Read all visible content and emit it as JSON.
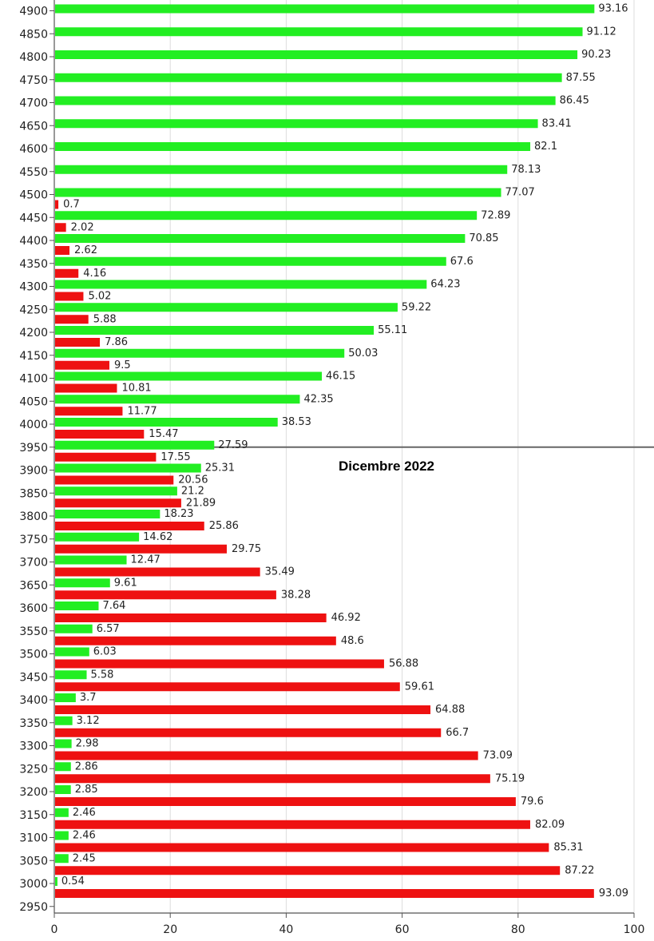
{
  "chart_data": {
    "type": "bar",
    "orientation": "horizontal",
    "title": "",
    "xlabel": "",
    "ylabel": "",
    "xlim": [
      0,
      100
    ],
    "x_ticks": [
      0,
      20,
      40,
      60,
      80,
      100
    ],
    "y_ticks": [
      4900,
      4850,
      4800,
      4750,
      4700,
      4650,
      4600,
      4550,
      4500,
      4450,
      4400,
      4350,
      4300,
      4250,
      4200,
      4150,
      4100,
      4050,
      4000,
      3950,
      3900,
      3850,
      3800,
      3750,
      3700,
      3650,
      3600,
      3550,
      3500,
      3450,
      3400,
      3350,
      3300,
      3250,
      3200,
      3150,
      3100,
      3050,
      3000,
      2950
    ],
    "grid": "vertical",
    "categories": [
      4900,
      4850,
      4800,
      4750,
      4700,
      4650,
      4600,
      4550,
      4500,
      4450,
      4400,
      4350,
      4300,
      4250,
      4200,
      4150,
      4100,
      4050,
      4000,
      3950,
      3900,
      3850,
      3800,
      3750,
      3700,
      3650,
      3600,
      3550,
      3500,
      3450,
      3400,
      3350,
      3300,
      3250,
      3200,
      3150,
      3100,
      3050,
      3000
    ],
    "series": [
      {
        "color": "#22ee22",
        "labels": [
          "93.16",
          "91.12",
          "90.23",
          "87.55",
          "86.45",
          "83.41",
          "82.1",
          "78.13",
          "77.07",
          "72.89",
          "70.85",
          "67.6",
          "64.23",
          "59.22",
          "55.11",
          "50.03",
          "46.15",
          "42.35",
          "38.53",
          "27.59",
          "25.31",
          "21.2",
          "18.23",
          "14.62",
          "12.47",
          "9.61",
          "7.64",
          "6.57",
          "6.03",
          "5.58",
          "3.7",
          "3.12",
          "2.98",
          "2.86",
          "2.85",
          "2.46",
          "2.46",
          "2.45",
          "0.54"
        ],
        "values": [
          93.16,
          91.12,
          90.23,
          87.55,
          86.45,
          83.41,
          82.1,
          78.13,
          77.07,
          72.89,
          70.85,
          67.6,
          64.23,
          59.22,
          55.11,
          50.03,
          46.15,
          42.35,
          38.53,
          27.59,
          25.31,
          21.2,
          18.23,
          14.62,
          12.47,
          9.61,
          7.64,
          6.57,
          6.03,
          5.58,
          3.7,
          3.12,
          2.98,
          2.86,
          2.85,
          2.46,
          2.46,
          2.45,
          0.54
        ]
      },
      {
        "color": "#ee1111",
        "labels": [
          null,
          null,
          null,
          null,
          null,
          null,
          null,
          null,
          "0.7",
          "2.02",
          "2.62",
          "4.16",
          "5.02",
          "5.88",
          "7.86",
          "9.5",
          "10.81",
          "11.77",
          "15.47",
          "17.55",
          "20.56",
          "21.89",
          "25.86",
          "29.75",
          "35.49",
          "38.28",
          "46.92",
          "48.6",
          "56.88",
          "59.61",
          "64.88",
          "66.7",
          "73.09",
          "75.19",
          "79.6",
          "82.09",
          "85.31",
          "87.22",
          "93.09"
        ],
        "values": [
          null,
          null,
          null,
          null,
          null,
          null,
          null,
          null,
          0.7,
          2.02,
          2.62,
          4.16,
          5.02,
          5.88,
          7.86,
          9.5,
          10.81,
          11.77,
          15.47,
          17.55,
          20.56,
          21.89,
          25.86,
          29.75,
          35.49,
          38.28,
          46.92,
          48.6,
          56.88,
          59.61,
          64.88,
          66.7,
          73.09,
          75.19,
          79.6,
          82.09,
          85.31,
          87.22,
          93.09
        ]
      }
    ],
    "annotations": [
      {
        "text": "Dicembre 2022"
      }
    ],
    "reference_line_y": 3950
  }
}
